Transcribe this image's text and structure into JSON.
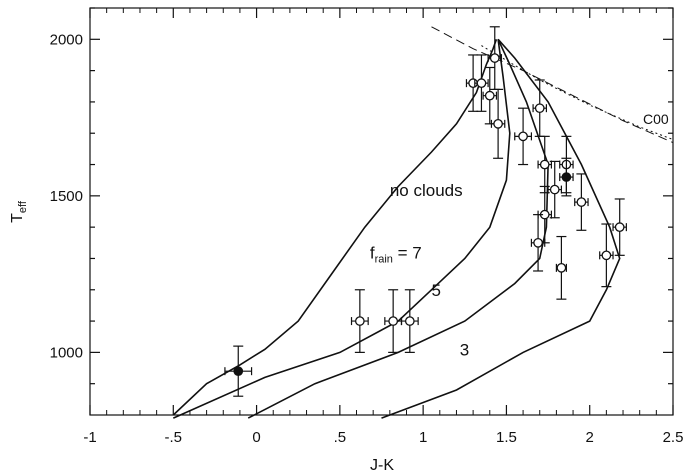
{
  "chart_data": {
    "type": "line",
    "xlabel": "J-K",
    "ylabel": {
      "main": "T",
      "sub": "eff"
    },
    "xlim": [
      -1,
      2.5
    ],
    "ylim": [
      800,
      2100
    ],
    "x_ticks": [
      -1,
      -0.5,
      0,
      0.5,
      1,
      1.5,
      2,
      2.5
    ],
    "x_tick_labels": [
      "-1",
      "-.5",
      "0",
      ".5",
      "1",
      "1.5",
      "2",
      "2.5"
    ],
    "y_ticks": [
      1000,
      1500,
      2000
    ],
    "y_tick_labels": [
      "1000",
      "1500",
      "2000"
    ],
    "grid": false,
    "series": [
      {
        "name": "no clouds",
        "style": "solid",
        "points": [
          [
            -0.5,
            800
          ],
          [
            -0.3,
            900
          ],
          [
            -0.1,
            960
          ],
          [
            0.05,
            1010
          ],
          [
            0.25,
            1100
          ],
          [
            0.45,
            1250
          ],
          [
            0.65,
            1400
          ],
          [
            0.85,
            1530
          ],
          [
            1.05,
            1640
          ],
          [
            1.2,
            1730
          ],
          [
            1.32,
            1830
          ],
          [
            1.38,
            1920
          ],
          [
            1.42,
            1970
          ],
          [
            1.44,
            2000
          ]
        ]
      },
      {
        "name": "f_rain = 7",
        "style": "solid",
        "points": [
          [
            -0.5,
            790
          ],
          [
            0.05,
            920
          ],
          [
            0.5,
            1000
          ],
          [
            0.85,
            1100
          ],
          [
            1.05,
            1200
          ],
          [
            1.25,
            1300
          ],
          [
            1.4,
            1400
          ],
          [
            1.5,
            1550
          ],
          [
            1.52,
            1700
          ],
          [
            1.48,
            1880
          ],
          [
            1.45,
            2000
          ]
        ]
      },
      {
        "name": "5",
        "style": "solid",
        "points": [
          [
            -0.05,
            790
          ],
          [
            0.35,
            900
          ],
          [
            0.85,
            1000
          ],
          [
            1.25,
            1100
          ],
          [
            1.55,
            1220
          ],
          [
            1.7,
            1300
          ],
          [
            1.74,
            1400
          ],
          [
            1.75,
            1600
          ],
          [
            1.62,
            1800
          ],
          [
            1.52,
            1920
          ],
          [
            1.45,
            2000
          ]
        ]
      },
      {
        "name": "3",
        "style": "solid",
        "points": [
          [
            0.75,
            790
          ],
          [
            1.2,
            880
          ],
          [
            1.6,
            1000
          ],
          [
            2.0,
            1100
          ],
          [
            2.1,
            1200
          ],
          [
            2.18,
            1300
          ],
          [
            2.12,
            1400
          ],
          [
            1.95,
            1600
          ],
          [
            1.75,
            1800
          ],
          [
            1.55,
            1940
          ],
          [
            1.45,
            2000
          ]
        ]
      },
      {
        "name": "C00",
        "style": "dashed",
        "points": [
          [
            1.05,
            2040
          ],
          [
            1.3,
            1970
          ],
          [
            1.6,
            1900
          ],
          [
            1.9,
            1820
          ],
          [
            2.2,
            1740
          ],
          [
            2.5,
            1670
          ]
        ]
      },
      {
        "name": "",
        "style": "dotted",
        "points": [
          [
            1.35,
            1980
          ],
          [
            1.7,
            1870
          ],
          [
            2.0,
            1790
          ],
          [
            2.3,
            1720
          ],
          [
            2.5,
            1680
          ]
        ]
      }
    ],
    "observations": [
      {
        "x": -0.11,
        "y": 940,
        "xerr": 0.08,
        "yerr": 80,
        "filled": true
      },
      {
        "x": 1.3,
        "y": 1860,
        "xerr": 0.04,
        "yerr": 90,
        "filled": false
      },
      {
        "x": 1.35,
        "y": 1860,
        "xerr": 0.04,
        "yerr": 90,
        "filled": false
      },
      {
        "x": 1.4,
        "y": 1820,
        "xerr": 0.04,
        "yerr": 90,
        "filled": false
      },
      {
        "x": 1.43,
        "y": 1940,
        "xerr": 0.04,
        "yerr": 100,
        "filled": false
      },
      {
        "x": 1.45,
        "y": 1730,
        "xerr": 0.04,
        "yerr": 110,
        "filled": false
      },
      {
        "x": 1.6,
        "y": 1690,
        "xerr": 0.05,
        "yerr": 90,
        "filled": false
      },
      {
        "x": 1.7,
        "y": 1780,
        "xerr": 0.04,
        "yerr": 90,
        "filled": false
      },
      {
        "x": 1.73,
        "y": 1600,
        "xerr": 0.04,
        "yerr": 90,
        "filled": false
      },
      {
        "x": 1.79,
        "y": 1520,
        "xerr": 0.04,
        "yerr": 90,
        "filled": false
      },
      {
        "x": 1.86,
        "y": 1600,
        "xerr": 0.04,
        "yerr": 90,
        "filled": false
      },
      {
        "x": 1.86,
        "y": 1560,
        "xerr": 0.04,
        "yerr": 60,
        "filled": true
      },
      {
        "x": 1.73,
        "y": 1440,
        "xerr": 0.04,
        "yerr": 90,
        "filled": false
      },
      {
        "x": 1.69,
        "y": 1350,
        "xerr": 0.04,
        "yerr": 90,
        "filled": false
      },
      {
        "x": 1.95,
        "y": 1480,
        "xerr": 0.04,
        "yerr": 90,
        "filled": false
      },
      {
        "x": 1.83,
        "y": 1270,
        "xerr": 0.03,
        "yerr": 100,
        "filled": false
      },
      {
        "x": 2.1,
        "y": 1310,
        "xerr": 0.04,
        "yerr": 100,
        "filled": false
      },
      {
        "x": 2.18,
        "y": 1400,
        "xerr": 0.04,
        "yerr": 90,
        "filled": false
      },
      {
        "x": 0.62,
        "y": 1100,
        "xerr": 0.05,
        "yerr": 100,
        "filled": false
      },
      {
        "x": 0.82,
        "y": 1100,
        "xerr": 0.05,
        "yerr": 100,
        "filled": false
      },
      {
        "x": 0.92,
        "y": 1100,
        "xerr": 0.05,
        "yerr": 100,
        "filled": false
      }
    ],
    "annotations": [
      {
        "id": "no-clouds",
        "text": "no clouds",
        "x": 0.8,
        "y": 1500
      },
      {
        "id": "frain-7",
        "text_main": "f",
        "text_sub": "rain",
        "text_rest": " =  7",
        "x": 0.68,
        "y": 1300
      },
      {
        "id": "five",
        "text": "5",
        "x": 1.05,
        "y": 1180
      },
      {
        "id": "three",
        "text": "3",
        "x": 1.22,
        "y": 990
      },
      {
        "id": "c00",
        "text": "C00",
        "x": 2.32,
        "y": 1730
      }
    ]
  }
}
